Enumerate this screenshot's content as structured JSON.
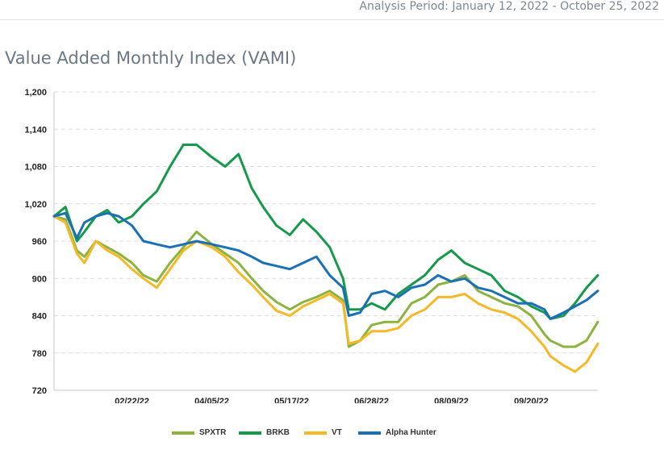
{
  "header": {
    "analysis_period": "Analysis Period: January 12, 2022 - October 25, 2022"
  },
  "chart_title": "Value Added Monthly Index (VAMI)",
  "chart_data": {
    "type": "line",
    "title": "Value Added Monthly Index (VAMI)",
    "xlabel": "",
    "ylabel": "",
    "ylim": [
      720,
      1200
    ],
    "y_ticks": [
      720,
      780,
      840,
      900,
      960,
      1020,
      1080,
      1140,
      1200
    ],
    "y_tick_labels": [
      "720",
      "780",
      "840",
      "900",
      "960",
      "1,020",
      "1,080",
      "1,140",
      "1,200"
    ],
    "x_start": "2022-01-12",
    "x_end": "2022-10-25",
    "x_ticks": [
      "2022-02-22",
      "2022-04-05",
      "2022-05-17",
      "2022-06-28",
      "2022-08-09",
      "2022-09-20"
    ],
    "x_tick_labels": [
      "02/22/22",
      "04/05/22",
      "05/17/22",
      "06/28/22",
      "08/09/22",
      "09/20/22"
    ],
    "grid": true,
    "legend_position": "bottom",
    "series": [
      {
        "name": "SPXTR",
        "color": "#8db33f",
        "x": [
          "2022-01-12",
          "2022-01-18",
          "2022-01-24",
          "2022-01-28",
          "2022-02-03",
          "2022-02-09",
          "2022-02-15",
          "2022-02-22",
          "2022-02-28",
          "2022-03-07",
          "2022-03-14",
          "2022-03-21",
          "2022-03-28",
          "2022-04-05",
          "2022-04-12",
          "2022-04-19",
          "2022-04-26",
          "2022-05-02",
          "2022-05-09",
          "2022-05-16",
          "2022-05-23",
          "2022-05-30",
          "2022-06-06",
          "2022-06-13",
          "2022-06-16",
          "2022-06-22",
          "2022-06-28",
          "2022-07-05",
          "2022-07-12",
          "2022-07-19",
          "2022-07-26",
          "2022-08-02",
          "2022-08-09",
          "2022-08-16",
          "2022-08-23",
          "2022-08-30",
          "2022-09-06",
          "2022-09-13",
          "2022-09-20",
          "2022-09-27",
          "2022-09-30",
          "2022-10-07",
          "2022-10-13",
          "2022-10-19",
          "2022-10-25"
        ],
        "values": [
          1000,
          995,
          945,
          935,
          960,
          950,
          940,
          925,
          905,
          895,
          925,
          950,
          975,
          955,
          940,
          925,
          900,
          880,
          862,
          850,
          862,
          870,
          880,
          865,
          790,
          800,
          825,
          830,
          830,
          860,
          870,
          890,
          895,
          905,
          880,
          870,
          860,
          855,
          840,
          810,
          800,
          790,
          790,
          800,
          830
        ]
      },
      {
        "name": "BRKB",
        "color": "#149a4a",
        "x": [
          "2022-01-12",
          "2022-01-18",
          "2022-01-24",
          "2022-01-28",
          "2022-02-03",
          "2022-02-09",
          "2022-02-15",
          "2022-02-22",
          "2022-02-28",
          "2022-03-07",
          "2022-03-14",
          "2022-03-21",
          "2022-03-28",
          "2022-04-05",
          "2022-04-12",
          "2022-04-19",
          "2022-04-26",
          "2022-05-02",
          "2022-05-09",
          "2022-05-16",
          "2022-05-23",
          "2022-05-30",
          "2022-06-06",
          "2022-06-13",
          "2022-06-16",
          "2022-06-22",
          "2022-06-28",
          "2022-07-05",
          "2022-07-12",
          "2022-07-19",
          "2022-07-26",
          "2022-08-02",
          "2022-08-09",
          "2022-08-16",
          "2022-08-23",
          "2022-08-30",
          "2022-09-06",
          "2022-09-13",
          "2022-09-20",
          "2022-09-27",
          "2022-09-30",
          "2022-10-07",
          "2022-10-13",
          "2022-10-19",
          "2022-10-25"
        ],
        "values": [
          1000,
          1015,
          960,
          975,
          1000,
          1010,
          990,
          1000,
          1020,
          1040,
          1080,
          1115,
          1115,
          1095,
          1080,
          1100,
          1045,
          1015,
          985,
          970,
          995,
          975,
          950,
          900,
          850,
          850,
          860,
          850,
          875,
          890,
          905,
          930,
          945,
          925,
          915,
          905,
          880,
          870,
          855,
          845,
          835,
          840,
          860,
          885,
          905
        ]
      },
      {
        "name": "VT",
        "color": "#f5b827",
        "x": [
          "2022-01-12",
          "2022-01-18",
          "2022-01-24",
          "2022-01-28",
          "2022-02-03",
          "2022-02-09",
          "2022-02-15",
          "2022-02-22",
          "2022-02-28",
          "2022-03-07",
          "2022-03-14",
          "2022-03-21",
          "2022-03-28",
          "2022-04-05",
          "2022-04-12",
          "2022-04-19",
          "2022-04-26",
          "2022-05-02",
          "2022-05-09",
          "2022-05-16",
          "2022-05-23",
          "2022-05-30",
          "2022-06-06",
          "2022-06-13",
          "2022-06-16",
          "2022-06-22",
          "2022-06-28",
          "2022-07-05",
          "2022-07-12",
          "2022-07-19",
          "2022-07-26",
          "2022-08-02",
          "2022-08-09",
          "2022-08-16",
          "2022-08-23",
          "2022-08-30",
          "2022-09-06",
          "2022-09-13",
          "2022-09-20",
          "2022-09-27",
          "2022-09-30",
          "2022-10-07",
          "2022-10-13",
          "2022-10-19",
          "2022-10-25"
        ],
        "values": [
          1000,
          990,
          940,
          925,
          960,
          945,
          935,
          915,
          900,
          885,
          915,
          945,
          960,
          950,
          935,
          910,
          890,
          870,
          848,
          840,
          855,
          865,
          875,
          860,
          795,
          800,
          815,
          815,
          820,
          840,
          850,
          870,
          870,
          875,
          860,
          850,
          845,
          835,
          815,
          790,
          775,
          760,
          750,
          765,
          795
        ]
      },
      {
        "name": "Alpha Hunter",
        "color": "#1a6fb5",
        "x": [
          "2022-01-12",
          "2022-01-18",
          "2022-01-24",
          "2022-01-28",
          "2022-02-03",
          "2022-02-09",
          "2022-02-15",
          "2022-02-22",
          "2022-02-28",
          "2022-03-07",
          "2022-03-14",
          "2022-03-21",
          "2022-03-28",
          "2022-04-05",
          "2022-04-12",
          "2022-04-19",
          "2022-04-26",
          "2022-05-02",
          "2022-05-09",
          "2022-05-16",
          "2022-05-23",
          "2022-05-30",
          "2022-06-06",
          "2022-06-13",
          "2022-06-16",
          "2022-06-22",
          "2022-06-28",
          "2022-07-05",
          "2022-07-12",
          "2022-07-19",
          "2022-07-26",
          "2022-08-02",
          "2022-08-09",
          "2022-08-16",
          "2022-08-23",
          "2022-08-30",
          "2022-09-06",
          "2022-09-13",
          "2022-09-20",
          "2022-09-27",
          "2022-09-30",
          "2022-10-07",
          "2022-10-13",
          "2022-10-19",
          "2022-10-25"
        ],
        "values": [
          1000,
          1005,
          965,
          990,
          1000,
          1005,
          1000,
          985,
          960,
          955,
          950,
          955,
          960,
          955,
          950,
          945,
          935,
          925,
          920,
          915,
          925,
          935,
          905,
          885,
          840,
          845,
          875,
          880,
          870,
          885,
          890,
          905,
          895,
          900,
          885,
          880,
          870,
          860,
          860,
          850,
          835,
          845,
          855,
          865,
          880
        ]
      }
    ]
  }
}
